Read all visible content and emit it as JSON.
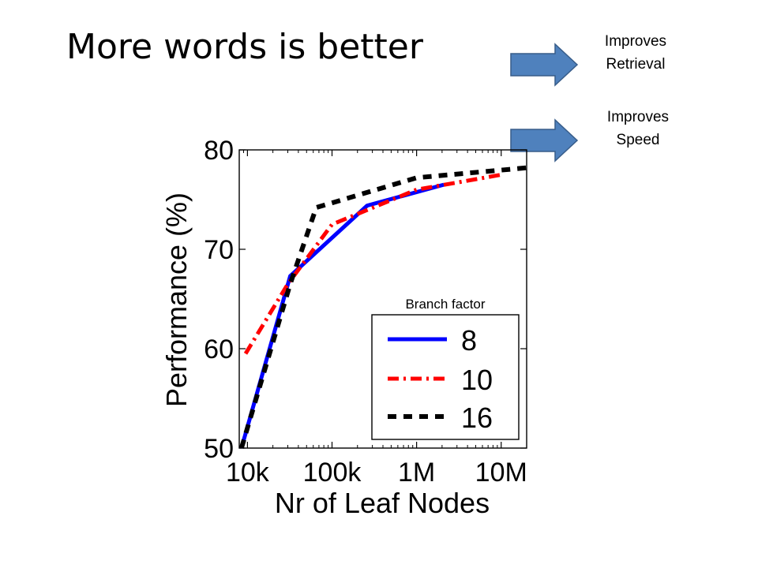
{
  "slide": {
    "title": "More words is better"
  },
  "notes": [
    {
      "line1": "Improves",
      "line2": "Retrieval"
    },
    {
      "line1": "Improves",
      "line2": "Speed"
    }
  ],
  "colors": {
    "arrow_fill": "#4f81bd",
    "arrow_stroke": "#385d8a",
    "series_8": "#0000ff",
    "series_10": "#ff0000",
    "series_16": "#000000"
  },
  "chart_data": {
    "type": "line",
    "title": "",
    "xlabel": "Nr of Leaf Nodes",
    "ylabel": "Performance (%)",
    "xscale": "log",
    "xlim": [
      8000,
      20000000
    ],
    "ylim": [
      50,
      80
    ],
    "xticks": [
      {
        "value": 10000,
        "label": "10k"
      },
      {
        "value": 100000,
        "label": "100k"
      },
      {
        "value": 1000000,
        "label": "1M"
      },
      {
        "value": 10000000,
        "label": "10M"
      }
    ],
    "yticks": [
      {
        "value": 50,
        "label": "50"
      },
      {
        "value": 60,
        "label": "60"
      },
      {
        "value": 70,
        "label": "70"
      },
      {
        "value": 80,
        "label": "80"
      }
    ],
    "legend_title": "Branch factor",
    "legend_position": "bottom-right",
    "series": [
      {
        "name": "8",
        "style": "solid",
        "x": [
          8500,
          32000,
          260000,
          2100000
        ],
        "y": [
          50,
          67.3,
          74.4,
          76.5
        ]
      },
      {
        "name": "10",
        "style": "dashdot",
        "x": [
          9500,
          30000,
          100000,
          1000000,
          10000000
        ],
        "y": [
          59.5,
          66.5,
          72.5,
          76,
          77.5
        ]
      },
      {
        "name": "16",
        "style": "dashed",
        "x": [
          8500,
          32000,
          65000,
          1000000,
          20000000
        ],
        "y": [
          50,
          66.5,
          74.2,
          77.2,
          78.2
        ]
      }
    ]
  }
}
